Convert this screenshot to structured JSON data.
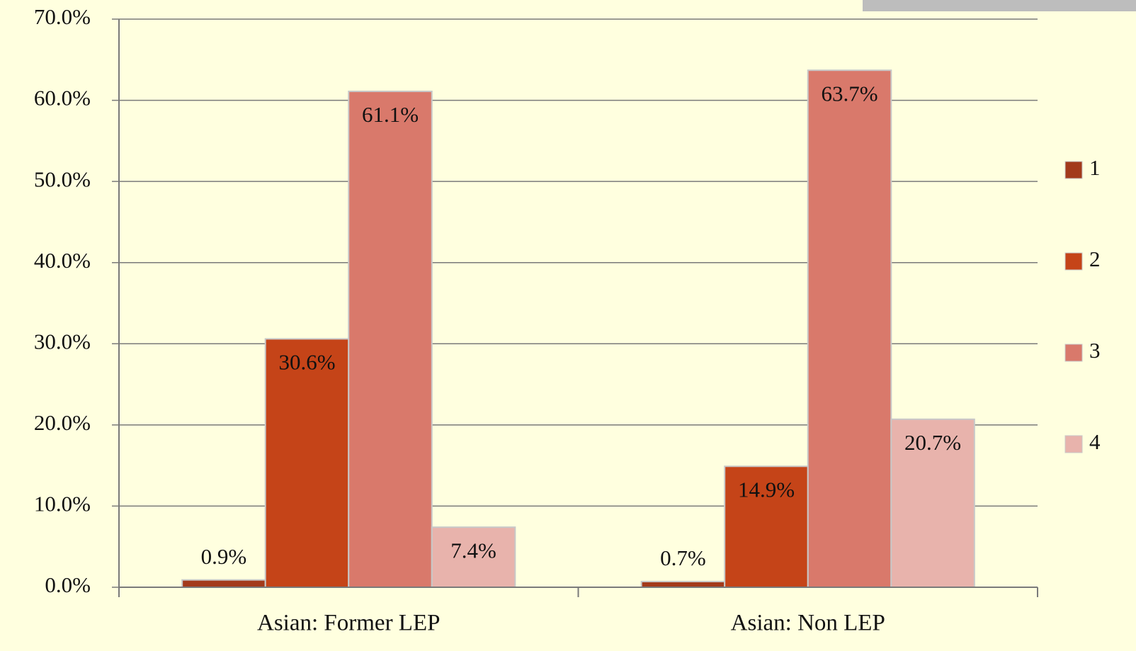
{
  "chart_data": {
    "type": "bar",
    "categories": [
      "Asian: Former LEP",
      "Asian: Non LEP"
    ],
    "series": [
      {
        "name": "1",
        "color": "#a33a1b",
        "values": [
          0.9,
          0.7
        ],
        "value_labels": [
          "0.9%",
          "0.7%"
        ]
      },
      {
        "name": "2",
        "color": "#c54418",
        "values": [
          30.6,
          14.9
        ],
        "value_labels": [
          "30.6%",
          "14.9%"
        ]
      },
      {
        "name": "3",
        "color": "#d9796b",
        "values": [
          61.1,
          63.7
        ],
        "value_labels": [
          "61.1%",
          "63.7%"
        ]
      },
      {
        "name": "4",
        "color": "#e8b3ac",
        "values": [
          7.4,
          20.7
        ],
        "value_labels": [
          "7.4%",
          "20.7%"
        ]
      }
    ],
    "ylim": [
      0,
      70
    ],
    "yticks": [
      {
        "value": 0,
        "label": "0.0%"
      },
      {
        "value": 10,
        "label": "10.0%"
      },
      {
        "value": 20,
        "label": "20.0%"
      },
      {
        "value": 30,
        "label": "30.0%"
      },
      {
        "value": 40,
        "label": "40.0%"
      },
      {
        "value": 50,
        "label": "50.0%"
      },
      {
        "value": 60,
        "label": "60.0%"
      },
      {
        "value": 70,
        "label": "70.0%"
      }
    ],
    "grid": true,
    "legend": "right"
  }
}
